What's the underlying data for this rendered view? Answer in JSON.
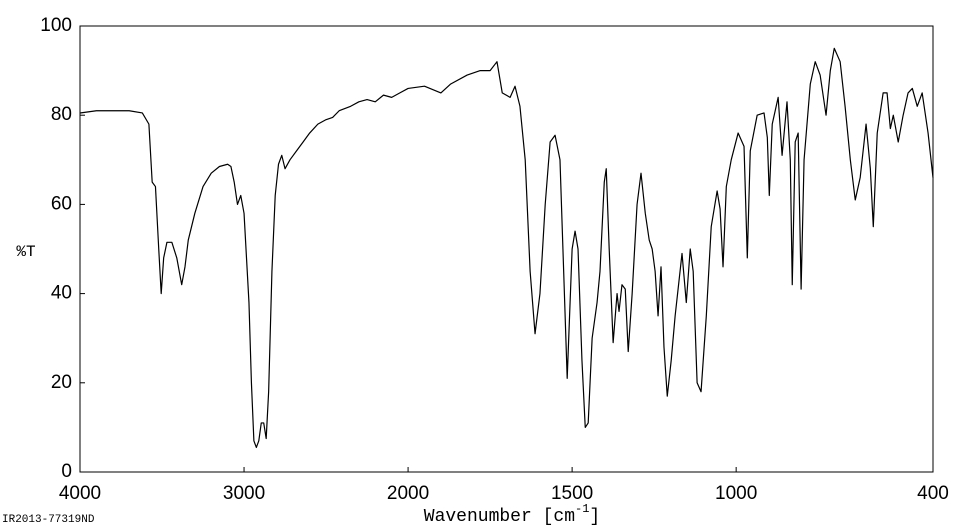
{
  "chart_data": {
    "type": "line",
    "ylabel": "%T",
    "xlabel": [
      "Wavenumber [cm",
      "-1",
      "]"
    ],
    "footnote": "IR2013-77319ND",
    "xlim": [
      4000,
      400
    ],
    "xbreak": 2000,
    "xbreak_scale": 2,
    "xticks": [
      4000,
      3000,
      2000,
      1500,
      1000,
      400
    ],
    "ylim": [
      0,
      100
    ],
    "yticks": [
      0,
      20,
      40,
      60,
      80,
      100
    ],
    "color": "#000000",
    "x": [
      4000,
      3900,
      3700,
      3620,
      3580,
      3560,
      3540,
      3520,
      3505,
      3490,
      3470,
      3440,
      3410,
      3380,
      3360,
      3340,
      3300,
      3250,
      3200,
      3150,
      3100,
      3080,
      3060,
      3040,
      3020,
      3000,
      2985,
      2970,
      2955,
      2940,
      2925,
      2910,
      2895,
      2880,
      2865,
      2850,
      2830,
      2810,
      2790,
      2770,
      2750,
      2720,
      2680,
      2640,
      2600,
      2550,
      2500,
      2460,
      2420,
      2350,
      2300,
      2250,
      2200,
      2150,
      2100,
      2050,
      2000,
      1950,
      1900,
      1870,
      1820,
      1780,
      1750,
      1729,
      1713,
      1689,
      1674,
      1659,
      1643,
      1628,
      1613,
      1598,
      1582,
      1567,
      1552,
      1537,
      1528,
      1515,
      1500,
      1491,
      1482,
      1470,
      1460,
      1451,
      1439,
      1424,
      1415,
      1402,
      1396,
      1387,
      1375,
      1363,
      1357,
      1348,
      1338,
      1329,
      1317,
      1302,
      1290,
      1277,
      1265,
      1256,
      1247,
      1238,
      1229,
      1220,
      1210,
      1198,
      1186,
      1174,
      1165,
      1152,
      1140,
      1131,
      1119,
      1107,
      1091,
      1076,
      1058,
      1049,
      1040,
      1030,
      1015,
      994,
      976,
      966,
      957,
      936,
      915,
      905,
      899,
      890,
      872,
      860,
      845,
      835,
      829,
      820,
      811,
      802,
      793,
      774,
      759,
      744,
      726,
      713,
      701,
      683,
      668,
      652,
      637,
      622,
      604,
      591,
      582,
      570,
      552,
      540,
      530,
      521,
      506,
      491,
      476,
      463,
      448,
      433,
      415,
      400
    ],
    "values": [
      80.5,
      81,
      81,
      80.5,
      78,
      65,
      64,
      50,
      40,
      48,
      51.5,
      51.5,
      48,
      42,
      46,
      52,
      58,
      64,
      67,
      68.5,
      69,
      68.5,
      65,
      60,
      62,
      58,
      48,
      38,
      20,
      7,
      5.5,
      7,
      11,
      11,
      7.5,
      18,
      45,
      62,
      69,
      71,
      68,
      70,
      72,
      74,
      76,
      78,
      79,
      79.5,
      81,
      82,
      83,
      83.5,
      83,
      84.5,
      84,
      85,
      86,
      86.5,
      85,
      87,
      89,
      90,
      90,
      92,
      85,
      84,
      86.5,
      82,
      70,
      45,
      31,
      40,
      60,
      74,
      75.5,
      70,
      50,
      21,
      50,
      54,
      50,
      25,
      10,
      11,
      30,
      38,
      45,
      65,
      68,
      50,
      29,
      40,
      36,
      42,
      41,
      27,
      40,
      60,
      67,
      58,
      52,
      50,
      45,
      35,
      46,
      28,
      17,
      25,
      35,
      43,
      49,
      38,
      50,
      45,
      20,
      18,
      35,
      55,
      63,
      59,
      46,
      64,
      70,
      76,
      73,
      48,
      72,
      80,
      80.5,
      75,
      62,
      78,
      84,
      71,
      83,
      70,
      42,
      74,
      76,
      41,
      70,
      87,
      92,
      89,
      80,
      90,
      95,
      92,
      82,
      70,
      61,
      66,
      78,
      68,
      55,
      76,
      85,
      85,
      77,
      80,
      74,
      80,
      85,
      86,
      82,
      85,
      76,
      66
    ]
  }
}
